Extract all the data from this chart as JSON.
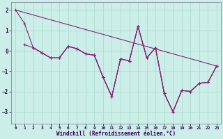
{
  "xlabel": "Windchill (Refroidissement éolien,°C)",
  "background_color": "#cceee8",
  "grid_color": "#aaddcc",
  "line_color": "#882277",
  "xlim": [
    -0.5,
    23.5
  ],
  "ylim": [
    -3.6,
    2.4
  ],
  "yticks": [
    -3,
    -2,
    -1,
    0,
    1,
    2
  ],
  "xticks": [
    0,
    1,
    2,
    3,
    4,
    5,
    6,
    7,
    8,
    9,
    10,
    11,
    12,
    13,
    14,
    15,
    16,
    17,
    18,
    19,
    20,
    21,
    22,
    23
  ],
  "line1_x": [
    0,
    1,
    2,
    3,
    4,
    5,
    6,
    7,
    8,
    9,
    10,
    11,
    12,
    13,
    14,
    15,
    16,
    17,
    18,
    19,
    20,
    21,
    22,
    23
  ],
  "line1_y": [
    2.0,
    1.35,
    0.15,
    -0.1,
    -0.35,
    -0.35,
    0.22,
    0.1,
    -0.15,
    -0.22,
    -1.3,
    -2.25,
    -0.4,
    -0.5,
    1.2,
    -0.35,
    0.15,
    -2.1,
    -3.0,
    -1.95,
    -2.0,
    -1.6,
    -1.55,
    -0.75
  ],
  "line2_x": [
    0,
    23
  ],
  "line2_y": [
    2.0,
    -0.75
  ],
  "line3_x": [
    1,
    2,
    3,
    4,
    5,
    6,
    7,
    8,
    9,
    10,
    11,
    12,
    13,
    14,
    15,
    16,
    17,
    18,
    19,
    20,
    21,
    22,
    23
  ],
  "line3_y": [
    0.3,
    0.15,
    -0.1,
    -0.35,
    -0.35,
    0.22,
    0.1,
    -0.15,
    -0.22,
    -1.3,
    -2.25,
    -0.4,
    -0.5,
    1.2,
    -0.35,
    0.15,
    -2.1,
    -3.0,
    -1.95,
    -2.0,
    -1.6,
    -1.55,
    -0.75
  ],
  "line4_x": [
    2,
    3,
    4,
    5,
    6,
    7,
    8,
    9,
    10,
    11,
    12,
    13,
    14,
    15,
    16,
    17,
    18,
    19,
    20,
    21,
    22,
    23
  ],
  "line4_y": [
    0.15,
    -0.1,
    -0.35,
    -0.35,
    0.22,
    0.1,
    -0.15,
    -0.22,
    -1.3,
    -2.25,
    -0.4,
    -0.5,
    1.2,
    -0.35,
    0.15,
    -2.1,
    -3.0,
    -1.95,
    -2.0,
    -1.6,
    -1.55,
    -0.75
  ]
}
